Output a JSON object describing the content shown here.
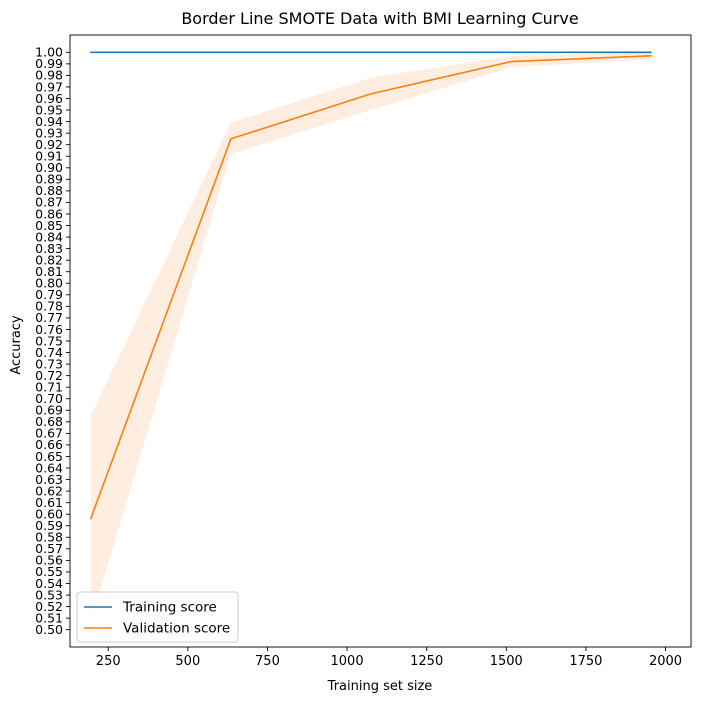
{
  "chart_data": {
    "type": "line",
    "title": "Border Line SMOTE Data with BMI Learning Curve",
    "xlabel": "Training set size",
    "ylabel": "Accuracy",
    "xlim": [
      130,
      2080
    ],
    "ylim": [
      0.485,
      1.015
    ],
    "xticks": [
      250,
      500,
      750,
      1000,
      1250,
      1500,
      1750,
      2000
    ],
    "yticks": [
      0.5,
      0.51,
      0.52,
      0.53,
      0.54,
      0.55,
      0.56,
      0.57,
      0.58,
      0.59,
      0.6,
      0.61,
      0.62,
      0.63,
      0.64,
      0.65,
      0.66,
      0.67,
      0.68,
      0.69,
      0.7,
      0.71,
      0.72,
      0.73,
      0.74,
      0.75,
      0.76,
      0.77,
      0.78,
      0.79,
      0.8,
      0.81,
      0.82,
      0.83,
      0.84,
      0.85,
      0.86,
      0.87,
      0.88,
      0.89,
      0.9,
      0.91,
      0.92,
      0.93,
      0.94,
      0.95,
      0.96,
      0.97,
      0.98,
      0.99,
      1.0
    ],
    "grid": false,
    "legend_position": "lower-left",
    "x": [
      195,
      635,
      1075,
      1515,
      1955
    ],
    "series": [
      {
        "name": "Training score",
        "color": "#1f77b4",
        "values": [
          1.0,
          1.0,
          1.0,
          1.0,
          1.0
        ]
      },
      {
        "name": "Validation score",
        "color": "#ff7f0e",
        "band_color": "#ffeee0",
        "values": [
          0.596,
          0.925,
          0.964,
          0.992,
          0.997
        ],
        "band_lower": [
          0.507,
          0.912,
          0.95,
          0.987,
          0.994
        ],
        "band_upper": [
          0.685,
          0.939,
          0.978,
          0.997,
          1.0
        ]
      }
    ]
  }
}
